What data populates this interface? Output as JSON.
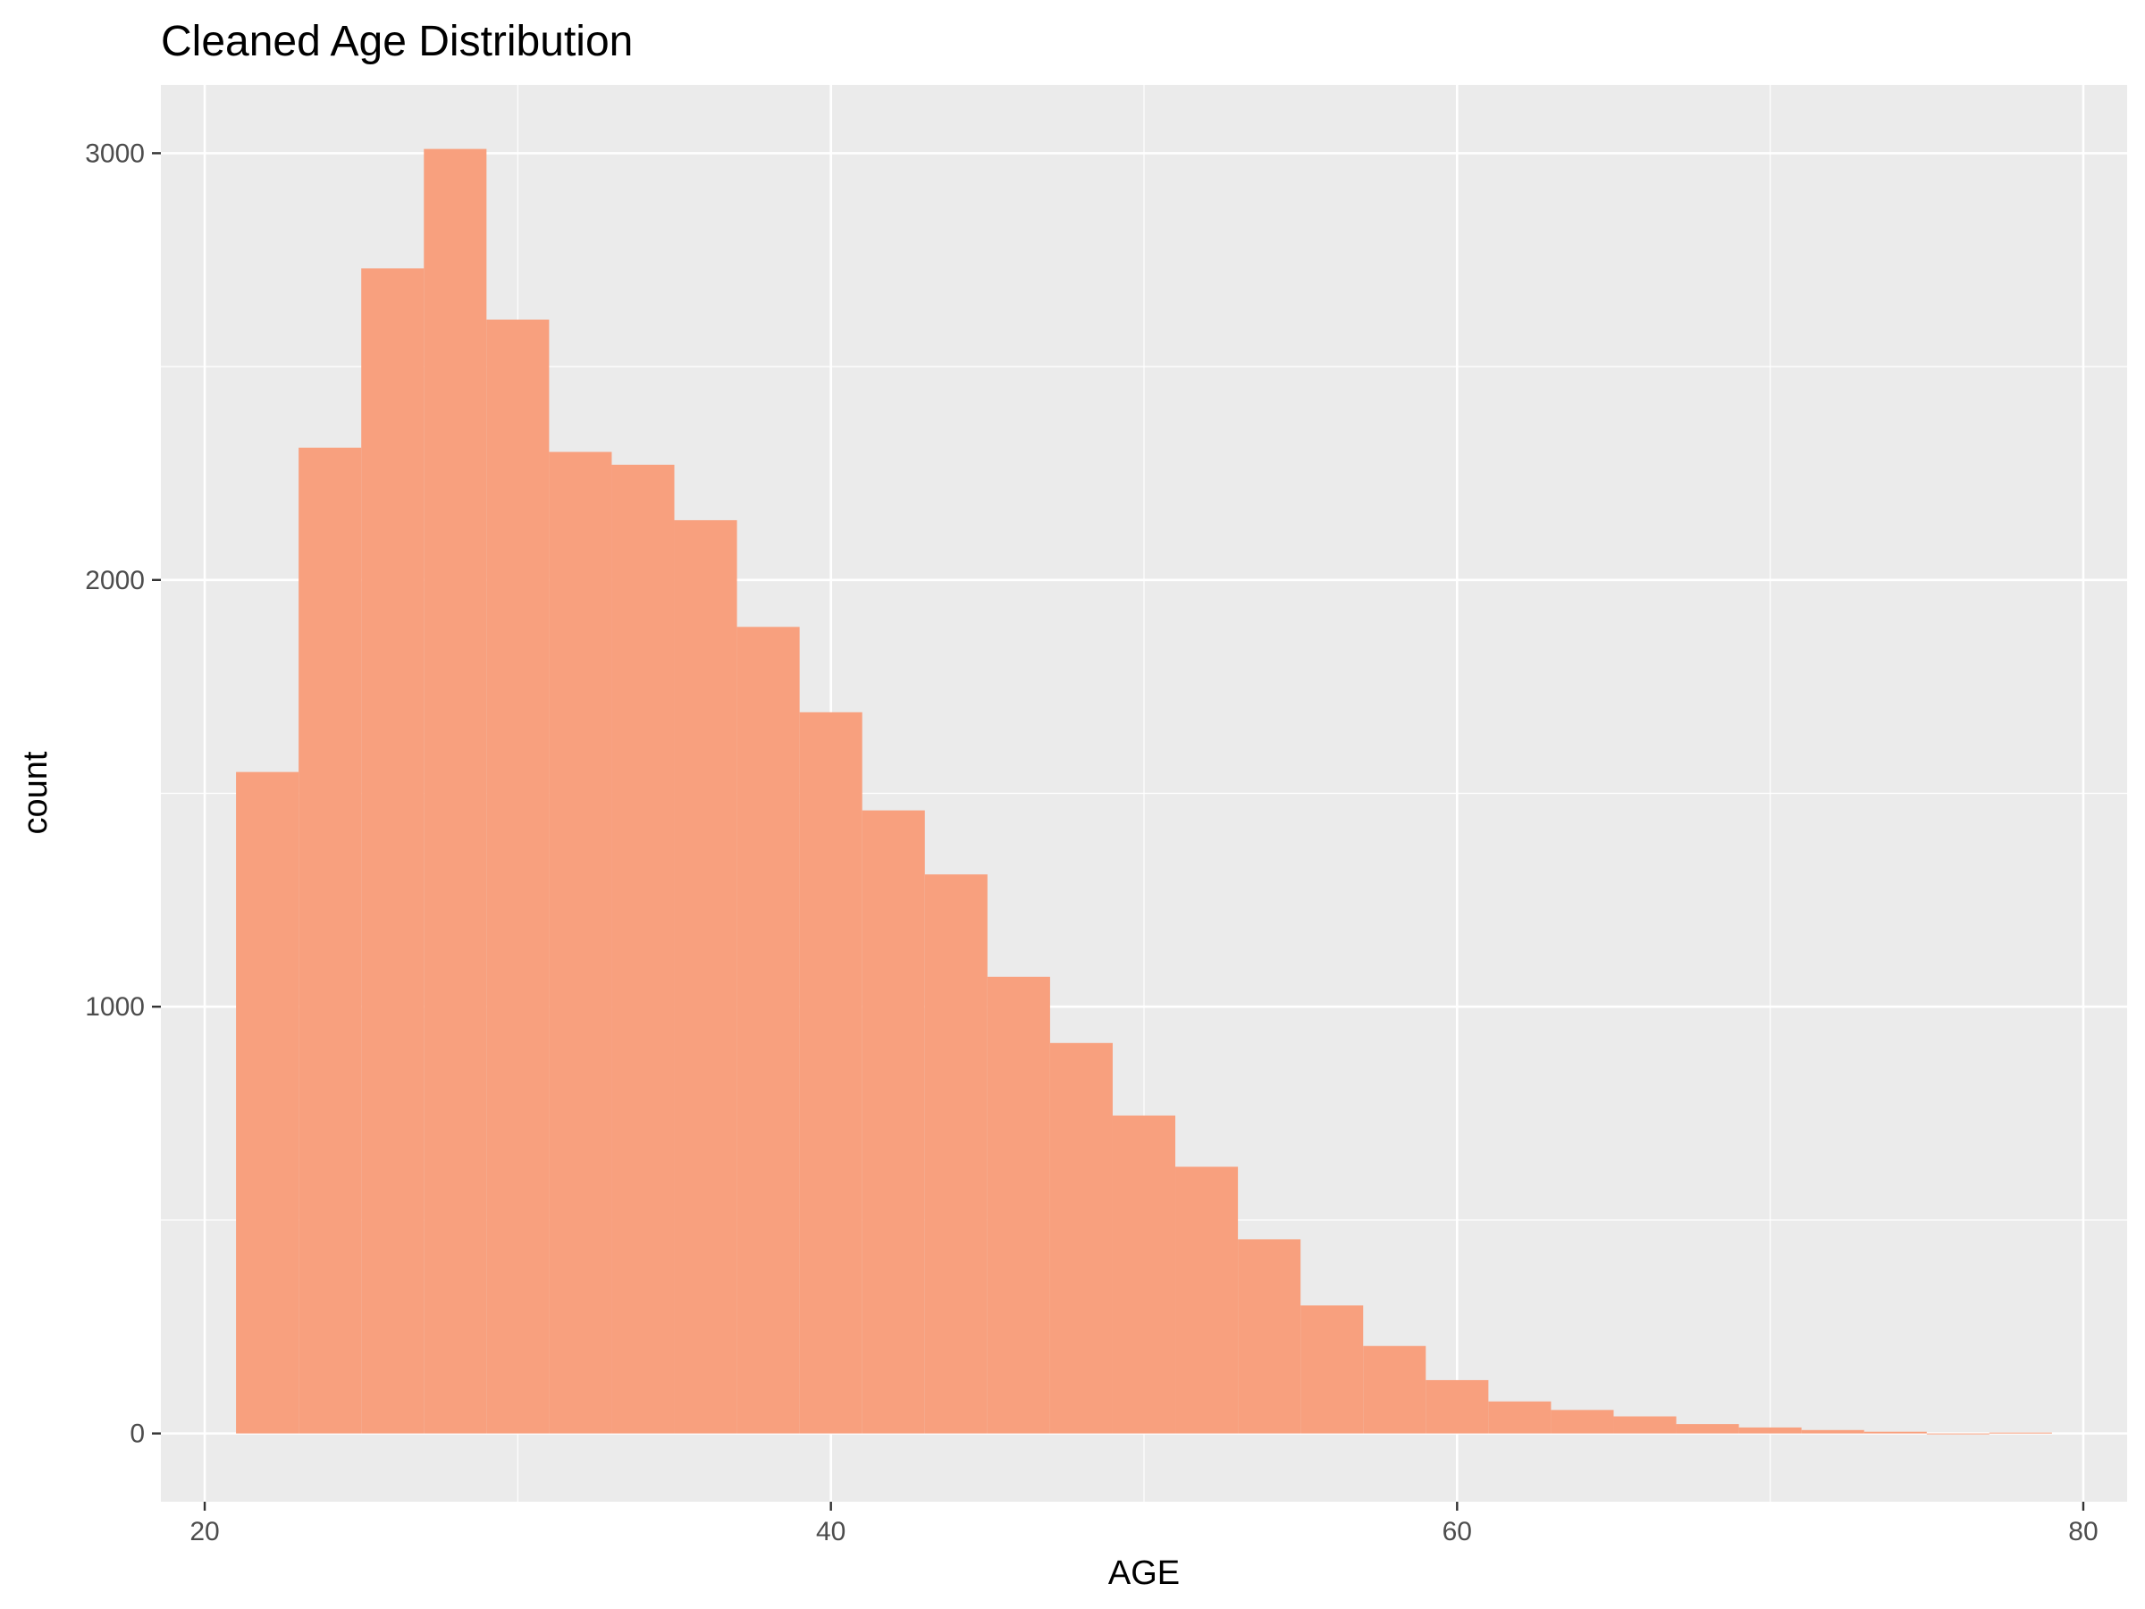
{
  "chart_data": {
    "type": "bar",
    "title": "Cleaned Age Distribution",
    "xlabel": "AGE",
    "ylabel": "count",
    "xlim": [
      18.6,
      81.4
    ],
    "ylim": [
      -160,
      3160
    ],
    "x_ticks": [
      20,
      40,
      60,
      80
    ],
    "y_ticks": [
      0,
      1000,
      2000,
      3000
    ],
    "grid": true,
    "bar_color": "#F8A07E",
    "panel_background": "#EBEBEB",
    "grid_color": "#FFFFFF",
    "bins": [
      {
        "x0": 21,
        "x1": 23,
        "count": 1550
      },
      {
        "x0": 23,
        "x1": 25,
        "count": 2310
      },
      {
        "x0": 25,
        "x1": 27,
        "count": 2730
      },
      {
        "x0": 27,
        "x1": 29,
        "count": 3010
      },
      {
        "x0": 29,
        "x1": 31,
        "count": 2610
      },
      {
        "x0": 31,
        "x1": 33,
        "count": 2300
      },
      {
        "x0": 33,
        "x1": 35,
        "count": 2270
      },
      {
        "x0": 35,
        "x1": 37,
        "count": 2140
      },
      {
        "x0": 37,
        "x1": 39,
        "count": 1890
      },
      {
        "x0": 39,
        "x1": 41,
        "count": 1690
      },
      {
        "x0": 41,
        "x1": 43,
        "count": 1460
      },
      {
        "x0": 43,
        "x1": 45,
        "count": 1310
      },
      {
        "x0": 45,
        "x1": 47,
        "count": 1070
      },
      {
        "x0": 47,
        "x1": 49,
        "count": 915
      },
      {
        "x0": 49,
        "x1": 51,
        "count": 745
      },
      {
        "x0": 51,
        "x1": 53,
        "count": 625
      },
      {
        "x0": 53,
        "x1": 55,
        "count": 455
      },
      {
        "x0": 55,
        "x1": 57,
        "count": 300
      },
      {
        "x0": 57,
        "x1": 59,
        "count": 205
      },
      {
        "x0": 59,
        "x1": 61,
        "count": 125
      },
      {
        "x0": 61,
        "x1": 63,
        "count": 75
      },
      {
        "x0": 63,
        "x1": 65,
        "count": 55
      },
      {
        "x0": 65,
        "x1": 67,
        "count": 40
      },
      {
        "x0": 67,
        "x1": 69,
        "count": 22
      },
      {
        "x0": 69,
        "x1": 71,
        "count": 14
      },
      {
        "x0": 71,
        "x1": 73,
        "count": 8
      },
      {
        "x0": 73,
        "x1": 75,
        "count": 4
      },
      {
        "x0": 75,
        "x1": 77,
        "count": 0
      },
      {
        "x0": 77,
        "x1": 79,
        "count": 2
      }
    ]
  }
}
